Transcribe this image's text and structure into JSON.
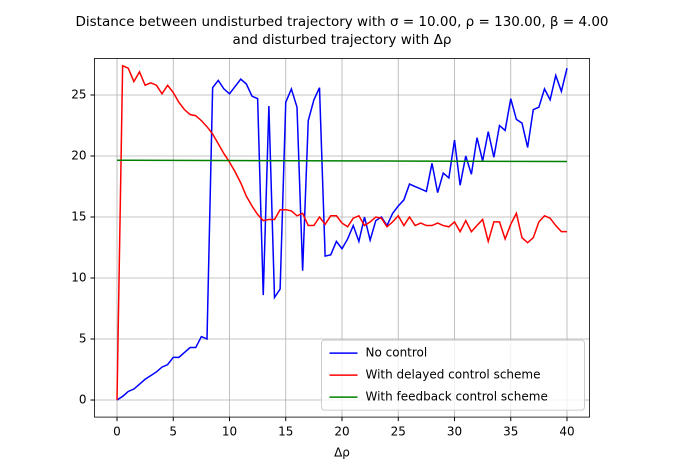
{
  "chart_data": {
    "type": "line",
    "title": "Distance between undisturbed trajectory with σ = 10.00, ρ = 130.00, β = 4.00",
    "subtitle": "and disturbed trajectory with Δρ",
    "xlabel": "Δρ",
    "xlim": [
      -2,
      42
    ],
    "ylim": [
      -1.4,
      28
    ],
    "xticks": [
      0,
      5,
      10,
      15,
      20,
      25,
      30,
      35,
      40
    ],
    "yticks": [
      0,
      5,
      10,
      15,
      20,
      25
    ],
    "grid": true,
    "legend": "lower right",
    "series": [
      {
        "name": "No control",
        "color": "#0000ff",
        "x": [
          0,
          0.5,
          1,
          1.5,
          2,
          2.5,
          3,
          3.5,
          4,
          4.5,
          5,
          5.5,
          6,
          6.5,
          7,
          7.5,
          8,
          8.5,
          9,
          9.5,
          10,
          10.5,
          11,
          11.5,
          12,
          12.5,
          13,
          13.5,
          14,
          14.5,
          15,
          15.5,
          16,
          16.5,
          17,
          17.5,
          18,
          18.5,
          19,
          19.5,
          20,
          20.5,
          21,
          21.5,
          22,
          22.5,
          23,
          23.5,
          24,
          24.5,
          25,
          25.5,
          26,
          26.5,
          27,
          27.5,
          28,
          28.5,
          29,
          29.5,
          30,
          30.5,
          31,
          31.5,
          32,
          32.5,
          33,
          33.5,
          34,
          34.5,
          35,
          35.5,
          36,
          36.5,
          37,
          37.5,
          38,
          38.5,
          39,
          39.5,
          40
        ],
        "values": [
          0,
          0.3,
          0.7,
          0.9,
          1.3,
          1.7,
          2.0,
          2.3,
          2.7,
          2.9,
          3.5,
          3.5,
          3.9,
          4.3,
          4.3,
          5.2,
          5.0,
          25.6,
          26.2,
          25.5,
          25.1,
          25.7,
          26.3,
          25.9,
          24.9,
          24.7,
          8.6,
          24.1,
          8.4,
          9.1,
          24.4,
          25.5,
          24.0,
          10.6,
          22.9,
          24.6,
          25.6,
          11.8,
          11.9,
          13.0,
          12.4,
          13.2,
          14.3,
          13.0,
          15.0,
          13.1,
          14.7,
          15.0,
          14.3,
          15.3,
          15.9,
          16.4,
          17.7,
          17.5,
          17.3,
          17.1,
          19.4,
          17.0,
          18.6,
          18.2,
          21.3,
          17.6,
          20.0,
          18.5,
          21.5,
          19.6,
          22.0,
          19.9,
          22.5,
          22.1,
          24.7,
          23.0,
          22.7,
          20.7,
          23.8,
          24.0,
          25.5,
          24.6,
          26.6,
          25.3,
          27.2
        ]
      },
      {
        "name": "With delayed control scheme",
        "color": "#ff0000",
        "x": [
          0,
          0.5,
          1,
          1.5,
          2,
          2.5,
          3,
          3.5,
          4,
          4.5,
          5,
          5.5,
          6,
          6.5,
          7,
          7.5,
          8,
          8.5,
          9,
          9.5,
          10,
          10.5,
          11,
          11.5,
          12,
          12.5,
          13,
          13.5,
          14,
          14.5,
          15,
          15.5,
          16,
          16.5,
          17,
          17.5,
          18,
          18.5,
          19,
          19.5,
          20,
          20.5,
          21,
          21.5,
          22,
          22.5,
          23,
          23.5,
          24,
          24.5,
          25,
          25.5,
          26,
          26.5,
          27,
          27.5,
          28,
          28.5,
          29,
          29.5,
          30,
          30.5,
          31,
          31.5,
          32,
          32.5,
          33,
          33.5,
          34,
          34.5,
          35,
          35.5,
          36,
          36.5,
          37,
          37.5,
          38,
          38.5,
          39,
          39.5,
          40
        ],
        "values": [
          0,
          27.4,
          27.2,
          26.1,
          26.9,
          25.8,
          26.0,
          25.8,
          25.1,
          25.8,
          25.2,
          24.4,
          23.8,
          23.4,
          23.3,
          22.9,
          22.4,
          21.8,
          21.0,
          20.2,
          19.5,
          18.7,
          17.8,
          16.7,
          15.9,
          15.2,
          14.7,
          14.8,
          14.8,
          15.6,
          15.6,
          15.5,
          15.1,
          15.3,
          14.3,
          14.3,
          15.0,
          14.4,
          15.1,
          15.1,
          14.5,
          14.2,
          14.9,
          15.1,
          14.3,
          14.6,
          15.0,
          14.9,
          14.2,
          14.6,
          15.1,
          14.3,
          15.0,
          14.3,
          14.5,
          14.3,
          14.3,
          14.5,
          14.3,
          14.2,
          14.6,
          13.8,
          14.7,
          13.8,
          14.3,
          14.8,
          13.0,
          14.6,
          14.6,
          13.2,
          14.4,
          15.3,
          13.3,
          12.9,
          13.3,
          14.6,
          15.1,
          14.9,
          14.3,
          13.8,
          13.8
        ]
      },
      {
        "name": "With feedback control scheme",
        "color": "#008000",
        "x": [
          0,
          40
        ],
        "values": [
          19.65,
          19.55
        ]
      }
    ]
  }
}
